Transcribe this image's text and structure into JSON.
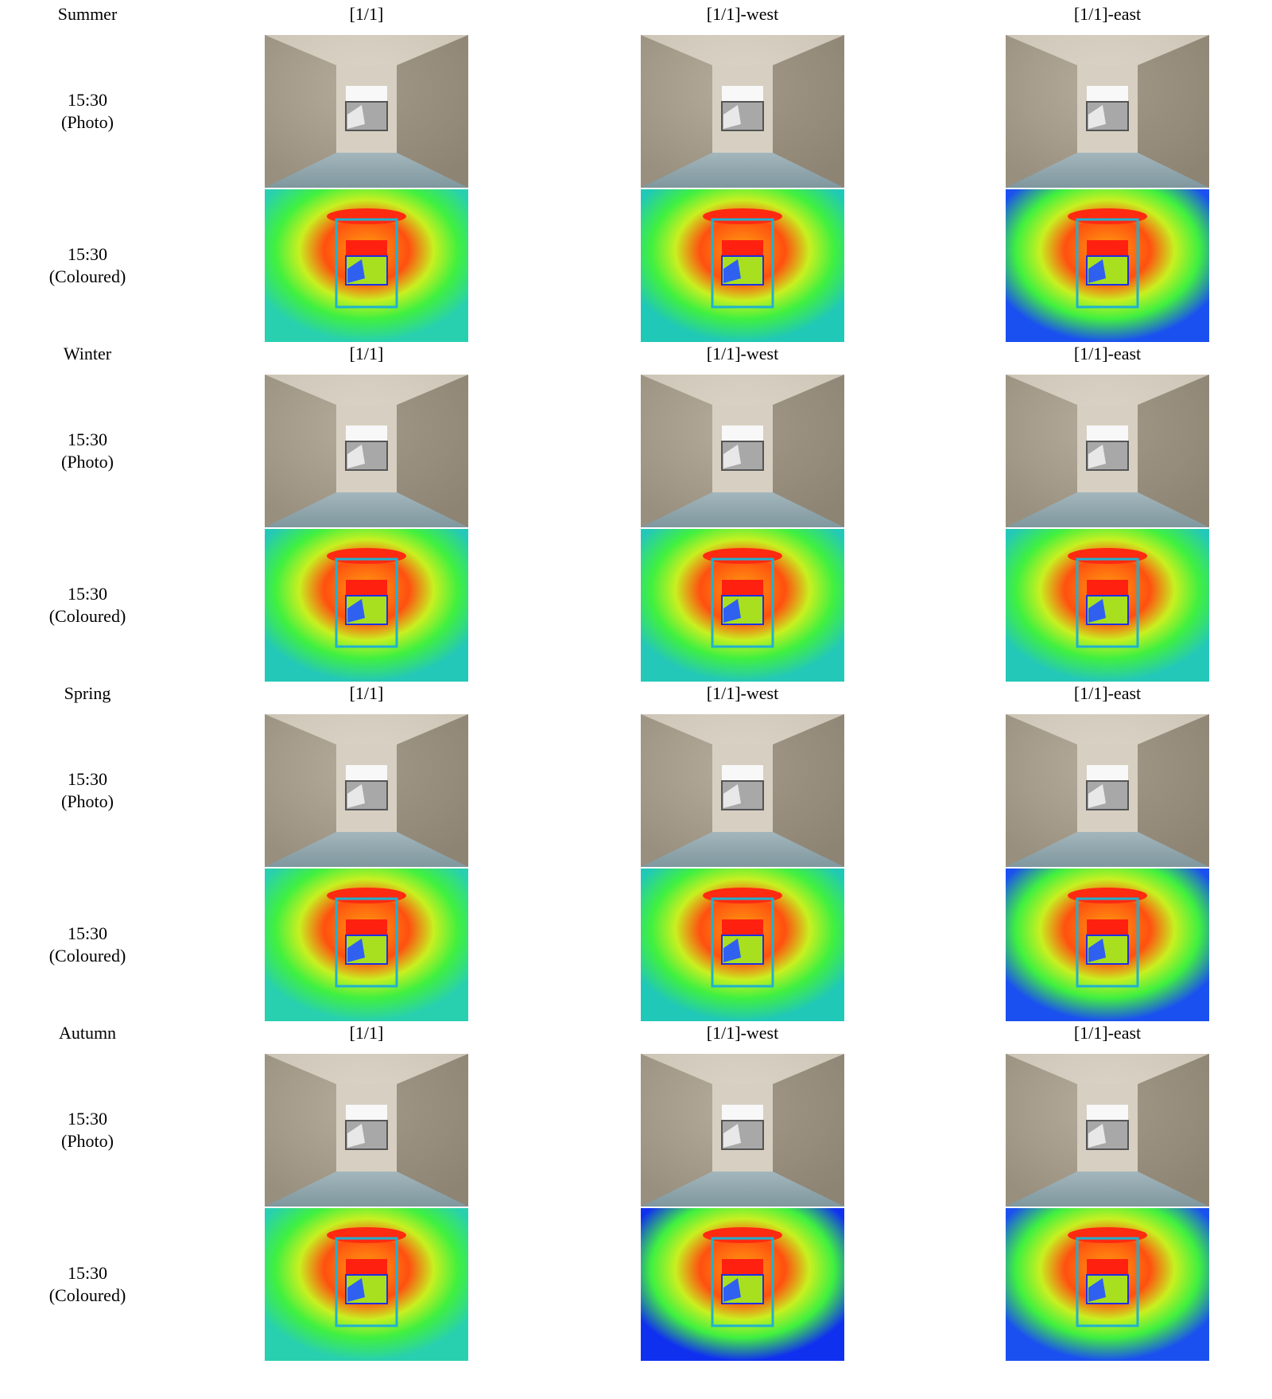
{
  "columns": [
    "[1/1]",
    "[1/1]-west",
    "[1/1]-east"
  ],
  "row_labels": {
    "photo": "15:30\n(Photo)",
    "coloured": "15:30\n(Coloured)"
  },
  "seasons": [
    {
      "name": "Summer",
      "columns": [
        "[1/1]",
        "[1/1]-west",
        "[1/1]-east"
      ]
    },
    {
      "name": "Winter",
      "columns": [
        "[1/1]",
        "[1/1]-west",
        "[1/1]-east"
      ]
    },
    {
      "name": "Spring",
      "columns": [
        "[1/1]",
        "[1/1]-west",
        "[1/1]-east"
      ]
    },
    {
      "name": "Autumn",
      "columns": [
        "[1/1]",
        "[1/1]-west",
        "[1/1]-east"
      ]
    }
  ],
  "colors": {
    "wall": "#b8ad9c",
    "floor": "#8fa6ad",
    "heat_red": "#ff2a10",
    "heat_green": "#3cf03c",
    "heat_cyan": "#20d0a0",
    "heat_blue": "#1030f0"
  }
}
